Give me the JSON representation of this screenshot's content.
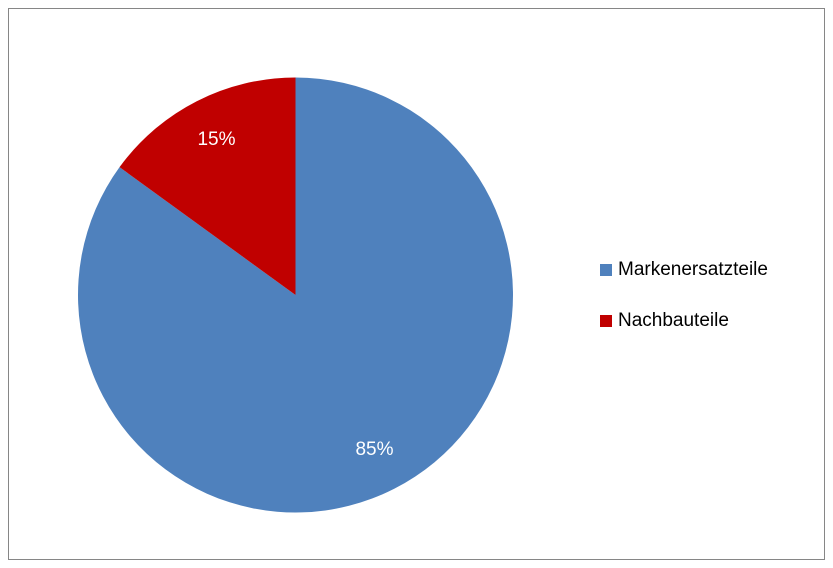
{
  "chart_data": {
    "type": "pie",
    "categories": [
      "Markenersatzteile",
      "Nachbauteile"
    ],
    "values": [
      85,
      15
    ],
    "value_labels": [
      "85%",
      "15%"
    ],
    "colors": [
      "#4f81bd",
      "#c00000"
    ],
    "legend": "right"
  }
}
